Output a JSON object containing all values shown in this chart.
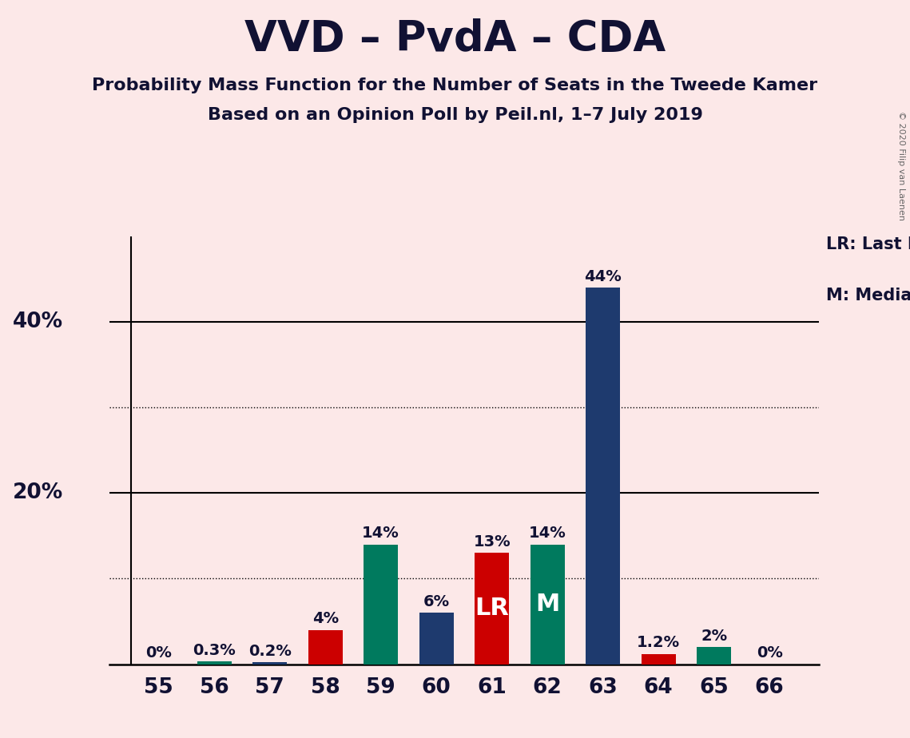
{
  "title": "VVD – PvdA – CDA",
  "subtitle1": "Probability Mass Function for the Number of Seats in the Tweede Kamer",
  "subtitle2": "Based on an Opinion Poll by Peil.nl, 1–7 July 2019",
  "copyright": "© 2020 Filip van Laenen",
  "legend1": "LR: Last Result",
  "legend2": "M: Median",
  "seats": [
    55,
    56,
    57,
    58,
    59,
    60,
    61,
    62,
    63,
    64,
    65,
    66
  ],
  "values": [
    0.0,
    0.3,
    0.2,
    4.0,
    14.0,
    6.0,
    13.0,
    14.0,
    44.0,
    1.2,
    2.0,
    0.0
  ],
  "labels": [
    "0%",
    "0.3%",
    "0.2%",
    "4%",
    "14%",
    "6%",
    "13%",
    "14%",
    "44%",
    "1.2%",
    "2%",
    "0%"
  ],
  "colors": [
    "#1e3a6e",
    "#007a5e",
    "#1e3a6e",
    "#cc0000",
    "#007a5e",
    "#1e3a6e",
    "#cc0000",
    "#007a5e",
    "#1e3a6e",
    "#cc0000",
    "#007a5e",
    "#1e3a6e"
  ],
  "bar_labels": [
    "",
    "",
    "",
    "",
    "",
    "",
    "LR",
    "M",
    "",
    "",
    "",
    ""
  ],
  "background_color": "#fce8e8",
  "ylim": [
    0,
    50
  ],
  "solid_lines": [
    20,
    40
  ],
  "dotted_lines": [
    10,
    30
  ],
  "title_fontsize": 38,
  "subtitle_fontsize": 16,
  "tick_fontsize": 19,
  "label_fontsize": 14,
  "bar_width": 0.62
}
